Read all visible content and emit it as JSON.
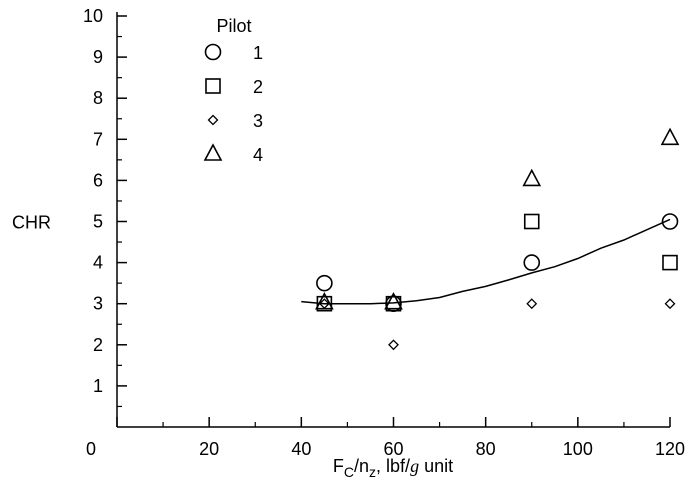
{
  "chart_data": {
    "type": "scatter",
    "xlabel": {
      "base": "F",
      "sub1": "C",
      "mid": "/n",
      "sub2": "z",
      "tail": ", lbf/",
      "italic": "g",
      "end": " unit"
    },
    "ylabel": "CHR",
    "xlim": [
      0,
      120
    ],
    "ylim": [
      0,
      10
    ],
    "xticks": [
      0,
      20,
      40,
      60,
      80,
      100,
      120
    ],
    "yticks": [
      1,
      2,
      3,
      4,
      5,
      6,
      7,
      8,
      9,
      10
    ],
    "grid": false,
    "legend": {
      "title": "Pilot",
      "position": "top-left"
    },
    "series": [
      {
        "name": "1",
        "marker": "circle",
        "points": [
          {
            "x": 45,
            "y": 3.5
          },
          {
            "x": 60,
            "y": 3.0
          },
          {
            "x": 90,
            "y": 4.0
          },
          {
            "x": 120,
            "y": 5.0
          }
        ]
      },
      {
        "name": "2",
        "marker": "square",
        "points": [
          {
            "x": 45,
            "y": 3.0
          },
          {
            "x": 60,
            "y": 3.0
          },
          {
            "x": 90,
            "y": 5.0
          },
          {
            "x": 120,
            "y": 4.0
          }
        ]
      },
      {
        "name": "3",
        "marker": "diamond",
        "points": [
          {
            "x": 45,
            "y": 3.0
          },
          {
            "x": 60,
            "y": 2.0
          },
          {
            "x": 90,
            "y": 3.0
          },
          {
            "x": 120,
            "y": 3.0
          }
        ]
      },
      {
        "name": "4",
        "marker": "triangle",
        "points": [
          {
            "x": 45,
            "y": 3.0
          },
          {
            "x": 60,
            "y": 3.0
          },
          {
            "x": 90,
            "y": 6.0
          },
          {
            "x": 120,
            "y": 7.0
          }
        ]
      }
    ],
    "fit_curve": {
      "points": [
        {
          "x": 40,
          "y": 3.05
        },
        {
          "x": 45,
          "y": 3.0
        },
        {
          "x": 50,
          "y": 3.0
        },
        {
          "x": 55,
          "y": 3.0
        },
        {
          "x": 60,
          "y": 3.02
        },
        {
          "x": 65,
          "y": 3.07
        },
        {
          "x": 70,
          "y": 3.15
        },
        {
          "x": 75,
          "y": 3.3
        },
        {
          "x": 80,
          "y": 3.42
        },
        {
          "x": 85,
          "y": 3.58
        },
        {
          "x": 90,
          "y": 3.75
        },
        {
          "x": 95,
          "y": 3.9
        },
        {
          "x": 100,
          "y": 4.1
        },
        {
          "x": 105,
          "y": 4.35
        },
        {
          "x": 110,
          "y": 4.55
        },
        {
          "x": 115,
          "y": 4.8
        },
        {
          "x": 120,
          "y": 5.05
        }
      ]
    }
  }
}
